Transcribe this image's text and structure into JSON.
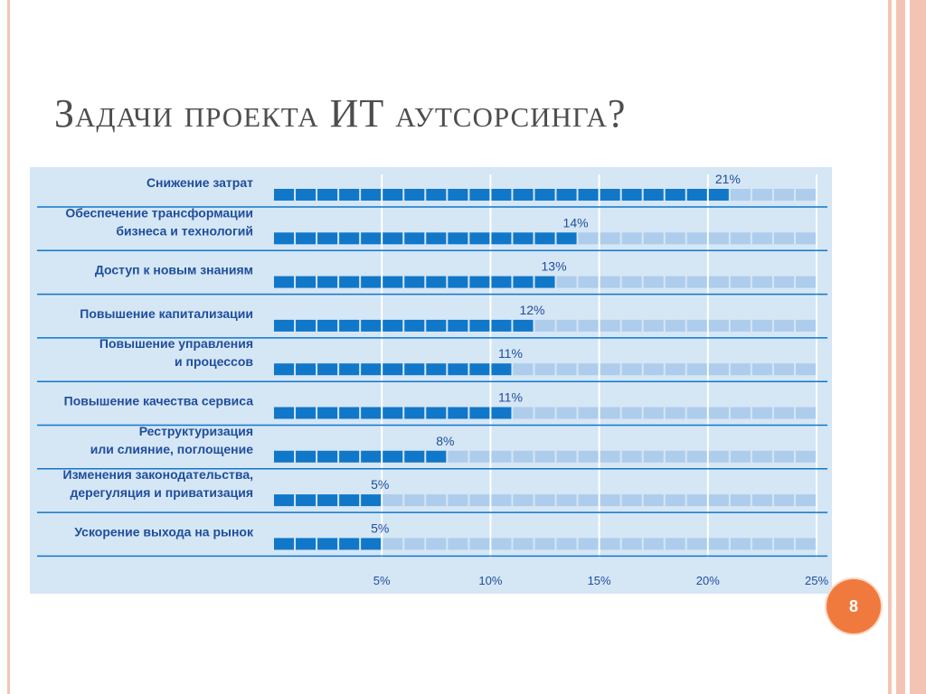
{
  "slide": {
    "title": "Задачи проекта ИТ аутсорсинга?",
    "page_number": "8"
  },
  "colors": {
    "bar_filled": "#1177c9",
    "bar_empty": "#aecdec",
    "panel_bg": "#d5e6f5",
    "text": "#1f4e9b",
    "badge": "#f07a3e",
    "frame": "#f3c4b4"
  },
  "chart_data": {
    "type": "bar",
    "orientation": "horizontal",
    "categories": [
      [
        "Снижение затрат"
      ],
      [
        "Обеспечение трансформации",
        "бизнеса и технологий"
      ],
      [
        "Доступ к новым знаниям"
      ],
      [
        "Повышение капитализации"
      ],
      [
        "Повышение управления",
        "и процессов"
      ],
      [
        "Повышение качества сервиса"
      ],
      [
        "Реструктуризация",
        "или слияние, поглощение"
      ],
      [
        "Изменения законодательства,",
        "дерегуляция и приватизация"
      ],
      [
        "Ускорение выхода на рынок"
      ]
    ],
    "values": [
      21,
      14,
      13,
      12,
      11,
      11,
      8,
      5,
      5
    ],
    "value_labels": [
      "21%",
      "14%",
      "13%",
      "12%",
      "11%",
      "11%",
      "8%",
      "5%",
      "5%"
    ],
    "xlim": [
      0,
      25
    ],
    "xticks": [
      5,
      10,
      15,
      20,
      25
    ],
    "xtick_labels": [
      "5%",
      "10%",
      "15%",
      "20%",
      "25%"
    ],
    "grid": true
  }
}
